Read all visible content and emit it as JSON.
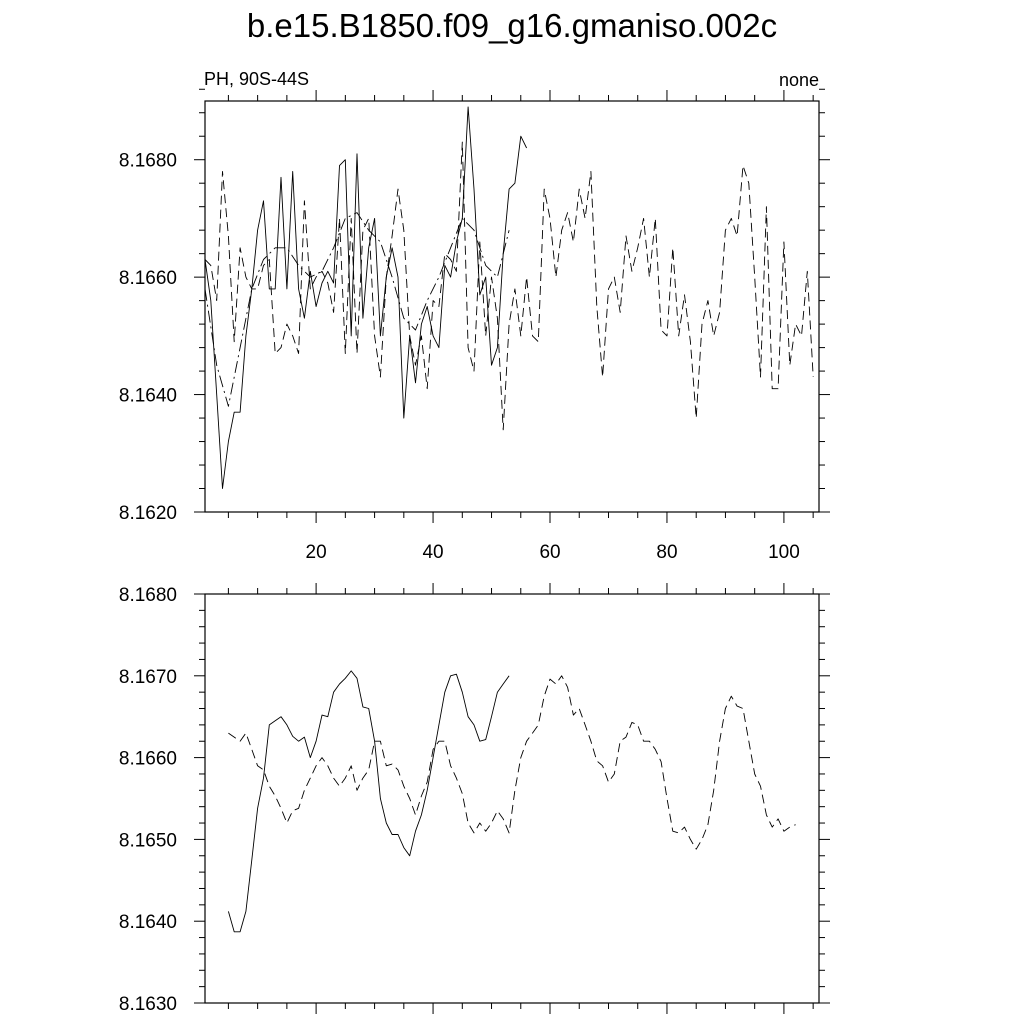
{
  "title": "b.e15.B1850.f09_g16.gmaniso.002c",
  "left_string": "PH, 90S-44S",
  "right_string": "none",
  "chart_data": [
    {
      "type": "line",
      "panel": "top",
      "xlim": [
        1,
        106
      ],
      "ylim": [
        8.162,
        8.169
      ],
      "xticks": [
        20,
        40,
        60,
        80,
        100
      ],
      "xtick_labels": [
        "20",
        "40",
        "60",
        "80",
        "100"
      ],
      "yticks": [
        8.162,
        8.164,
        8.166,
        8.168
      ],
      "ytick_labels": [
        "8.1620",
        "8.1640",
        "8.1660",
        "8.1680"
      ],
      "series": [
        {
          "style": "solid",
          "x": [
            1,
            2,
            3,
            4,
            5,
            6,
            7,
            8,
            9,
            10,
            11,
            12,
            13,
            14,
            15,
            16,
            17,
            18,
            19,
            20,
            21,
            22,
            23,
            24,
            25,
            26,
            27,
            28,
            29,
            30,
            31,
            32,
            33,
            34,
            35,
            36,
            37,
            38,
            39,
            40,
            41,
            42,
            43,
            44,
            45,
            46,
            47,
            48,
            49,
            50,
            51,
            52,
            53,
            54,
            55,
            56
          ],
          "y": [
            8.1663,
            8.1656,
            8.164,
            8.1624,
            8.1632,
            8.1637,
            8.1637,
            8.165,
            8.1658,
            8.1668,
            8.1673,
            8.1658,
            8.1658,
            8.1677,
            8.1658,
            8.1678,
            8.1658,
            8.1653,
            8.1661,
            8.1655,
            8.1659,
            8.1661,
            8.1659,
            8.1679,
            8.168,
            8.165,
            8.1681,
            8.1653,
            8.1665,
            8.167,
            8.165,
            8.166,
            8.1665,
            8.166,
            8.1636,
            8.165,
            8.1642,
            8.1652,
            8.1655,
            8.165,
            8.1648,
            8.1662,
            8.166,
            8.1666,
            8.167,
            8.1689,
            8.1675,
            8.1657,
            8.166,
            8.1645,
            8.1648,
            8.1664,
            8.1675,
            8.1676,
            8.1684,
            8.1682
          ]
        },
        {
          "style": "dashed",
          "x": [
            1,
            2,
            3,
            4,
            5,
            6,
            7,
            8,
            9,
            10,
            11,
            12,
            13,
            14,
            15,
            16,
            17,
            18,
            19,
            20,
            21,
            22,
            23,
            24,
            25,
            26,
            27,
            28,
            29,
            30,
            31,
            32,
            33,
            34,
            35,
            36,
            37,
            38,
            39,
            40,
            41,
            42,
            43,
            44,
            45,
            46,
            47,
            48,
            49,
            50,
            51,
            52,
            53,
            54,
            55,
            56,
            57,
            58,
            59,
            60,
            61,
            62,
            63,
            64,
            65,
            66,
            67,
            68,
            69,
            70,
            71,
            72,
            73,
            74,
            75,
            76,
            77,
            78,
            79,
            80,
            81,
            82,
            83,
            84,
            85,
            86,
            87,
            88,
            89,
            90,
            91,
            92,
            93,
            94,
            95,
            96,
            97,
            98,
            99,
            100,
            101,
            102,
            103,
            104,
            105
          ],
          "y": [
            8.1663,
            8.1662,
            8.1656,
            8.1678,
            8.1667,
            8.1649,
            8.1665,
            8.166,
            8.1658,
            8.1658,
            8.1662,
            8.1663,
            8.1647,
            8.1648,
            8.1652,
            8.165,
            8.1647,
            8.1673,
            8.1658,
            8.166,
            8.1661,
            8.1659,
            8.1654,
            8.167,
            8.1647,
            8.167,
            8.1647,
            8.1668,
            8.167,
            8.165,
            8.1643,
            8.166,
            8.1667,
            8.1675,
            8.1668,
            8.165,
            8.1645,
            8.165,
            8.1641,
            8.1656,
            8.1655,
            8.1664,
            8.1663,
            8.1661,
            8.1683,
            8.1648,
            8.1644,
            8.1666,
            8.165,
            8.166,
            8.1653,
            8.1634,
            8.1652,
            8.1658,
            8.165,
            8.166,
            8.165,
            8.1649,
            8.1675,
            8.167,
            8.166,
            8.1668,
            8.1671,
            8.1666,
            8.1675,
            8.167,
            8.1678,
            8.1655,
            8.1643,
            8.1658,
            8.166,
            8.1654,
            8.1667,
            8.1661,
            8.1665,
            8.167,
            8.166,
            8.167,
            8.1651,
            8.165,
            8.1665,
            8.165,
            8.1657,
            8.1649,
            8.1636,
            8.1652,
            8.1656,
            8.165,
            8.1654,
            8.1668,
            8.167,
            8.1667,
            8.1679,
            8.1676,
            8.166,
            8.1643,
            8.1672,
            8.1641,
            8.1641,
            8.1666,
            8.1645,
            8.1652,
            8.165,
            8.1661,
            8.1643
          ]
        },
        {
          "style": "dashdot",
          "x": [
            1,
            3,
            5,
            7,
            9,
            11,
            13,
            15,
            17,
            19,
            21,
            23,
            25,
            27,
            29,
            31,
            33,
            35,
            37,
            39,
            41,
            43,
            45,
            47,
            49,
            51,
            53
          ],
          "y": [
            8.1658,
            8.1645,
            8.1638,
            8.1648,
            8.1658,
            8.1663,
            8.1665,
            8.1665,
            8.1662,
            8.166,
            8.1661,
            8.1665,
            8.167,
            8.1671,
            8.1668,
            8.1666,
            8.166,
            8.1653,
            8.1651,
            8.1656,
            8.166,
            8.1665,
            8.167,
            8.1668,
            8.1662,
            8.166,
            8.1668
          ]
        }
      ]
    },
    {
      "type": "line",
      "panel": "bottom",
      "xlim": [
        1,
        106
      ],
      "ylim": [
        8.163,
        8.168
      ],
      "xticks": [
        20,
        40,
        60,
        80,
        100
      ],
      "yticks": [
        8.163,
        8.164,
        8.165,
        8.166,
        8.167,
        8.168
      ],
      "ytick_labels": [
        "8.1630",
        "8.1640",
        "8.1650",
        "8.1660",
        "8.1670",
        "8.1680"
      ],
      "series": [
        {
          "style": "solid",
          "x": [
            5,
            6,
            7,
            8,
            9,
            10,
            11,
            12,
            13,
            14,
            15,
            16,
            17,
            18,
            19,
            20,
            21,
            22,
            23,
            24,
            25,
            26,
            27,
            28,
            29,
            30,
            31,
            32,
            33,
            34,
            35,
            36,
            37,
            38,
            39,
            40,
            41,
            42,
            43,
            44,
            45,
            46,
            47,
            48,
            49,
            50,
            51,
            52,
            53
          ],
          "y": [
            8.16412,
            8.16387,
            8.16387,
            8.16412,
            8.16475,
            8.16538,
            8.16575,
            8.1664,
            8.16645,
            8.1665,
            8.1664,
            8.16626,
            8.1662,
            8.16625,
            8.166,
            8.1662,
            8.16652,
            8.1665,
            8.1668,
            8.1669,
            8.16697,
            8.16706,
            8.16697,
            8.16662,
            8.1666,
            8.1662,
            8.1655,
            8.1652,
            8.16506,
            8.16506,
            8.1649,
            8.1648,
            8.1651,
            8.1653,
            8.1656,
            8.166,
            8.1664,
            8.1668,
            8.167,
            8.16702,
            8.1668,
            8.1665,
            8.1664,
            8.1662,
            8.16622,
            8.1665,
            8.1668,
            8.1669,
            8.167
          ]
        },
        {
          "style": "dashed",
          "x": [
            5,
            6,
            7,
            8,
            9,
            10,
            11,
            12,
            13,
            14,
            15,
            16,
            17,
            18,
            19,
            20,
            21,
            22,
            23,
            24,
            25,
            26,
            27,
            28,
            29,
            30,
            31,
            32,
            33,
            34,
            35,
            36,
            37,
            38,
            39,
            40,
            41,
            42,
            43,
            44,
            45,
            46,
            47,
            48,
            49,
            50,
            51,
            52,
            53,
            54,
            55,
            56,
            57,
            58,
            59,
            60,
            61,
            62,
            63,
            64,
            65,
            66,
            67,
            68,
            69,
            70,
            71,
            72,
            73,
            74,
            75,
            76,
            77,
            78,
            79,
            80,
            81,
            82,
            83,
            84,
            85,
            86,
            87,
            88,
            89,
            90,
            91,
            92,
            93,
            94,
            95,
            96,
            97,
            98,
            99,
            100,
            101,
            102
          ],
          "y": [
            8.1663,
            8.16625,
            8.1662,
            8.1663,
            8.1661,
            8.1659,
            8.16585,
            8.16565,
            8.16553,
            8.16538,
            8.1652,
            8.16535,
            8.16538,
            8.1656,
            8.16575,
            8.1659,
            8.166,
            8.1659,
            8.16575,
            8.16565,
            8.16575,
            8.1659,
            8.1656,
            8.16575,
            8.16585,
            8.1662,
            8.1662,
            8.1659,
            8.16592,
            8.16585,
            8.16565,
            8.1655,
            8.1653,
            8.16553,
            8.1657,
            8.1661,
            8.1662,
            8.1662,
            8.1659,
            8.16575,
            8.16556,
            8.1652,
            8.16508,
            8.1652,
            8.1651,
            8.1652,
            8.16535,
            8.16525,
            8.16508,
            8.1656,
            8.166,
            8.1662,
            8.1663,
            8.1664,
            8.16675,
            8.16696,
            8.1669,
            8.167,
            8.16686,
            8.16652,
            8.1666,
            8.1664,
            8.1662,
            8.16596,
            8.1659,
            8.1657,
            8.1658,
            8.1662,
            8.16625,
            8.16643,
            8.1664,
            8.1662,
            8.1662,
            8.1661,
            8.16595,
            8.1655,
            8.1651,
            8.16508,
            8.16515,
            8.165,
            8.16488,
            8.165,
            8.16518,
            8.1656,
            8.1662,
            8.1666,
            8.16675,
            8.16663,
            8.1666,
            8.1662,
            8.1658,
            8.16565,
            8.1653,
            8.16515,
            8.16525,
            8.1651,
            8.16515,
            8.16518
          ]
        }
      ]
    }
  ]
}
